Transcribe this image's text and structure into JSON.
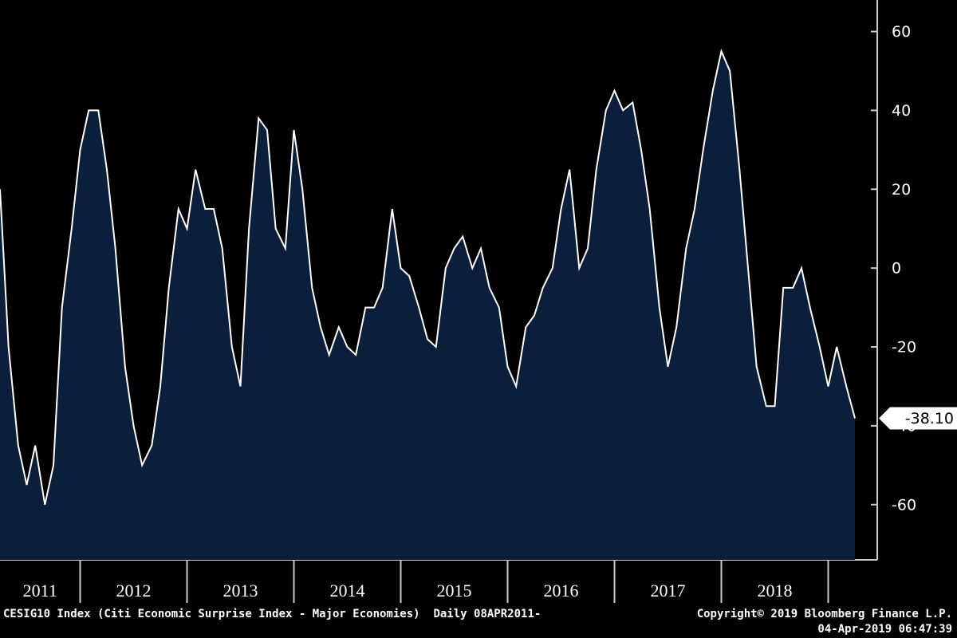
{
  "chart_data": {
    "type": "area",
    "series": [
      {
        "name": "CESIG10 Index",
        "color": "#ffffff",
        "fill": "#0b1f3c",
        "values": [
          20,
          -20,
          -45,
          -55,
          -45,
          -60,
          -50,
          -10,
          10,
          30,
          40,
          40,
          25,
          5,
          -25,
          -40,
          -50,
          -45,
          -30,
          -5,
          15,
          10,
          25,
          15,
          15,
          5,
          -20,
          -30,
          10,
          38,
          35,
          10,
          5,
          35,
          20,
          -5,
          -15,
          -22,
          -15,
          -20,
          -22,
          -10,
          -10,
          -5,
          15,
          0,
          -2,
          -10,
          -18,
          -20,
          0,
          5,
          8,
          0,
          5,
          -5,
          -10,
          -25,
          -30,
          -15,
          -12,
          -5,
          0,
          15,
          25,
          0,
          5,
          25,
          40,
          45,
          40,
          42,
          30,
          15,
          -10,
          -25,
          -15,
          5,
          15,
          30,
          45,
          55,
          50,
          25,
          0,
          -25,
          -35,
          -35,
          -5,
          -5,
          0,
          -10,
          -20,
          -30,
          -20,
          -30,
          -38.1
        ],
        "value_labels": [
          null,
          null,
          null,
          null,
          null,
          null,
          null,
          null,
          null,
          null,
          null,
          null,
          null,
          null,
          null,
          null,
          null,
          null,
          null,
          null,
          null,
          null,
          null,
          null,
          null,
          null,
          null,
          null,
          null,
          null,
          null,
          null,
          null,
          null,
          null,
          null,
          null,
          null,
          null,
          null,
          null,
          null,
          null,
          null,
          null,
          null,
          null,
          null,
          null,
          null,
          null,
          null,
          null,
          null,
          null,
          null,
          null,
          null,
          null,
          null,
          null,
          null,
          null,
          null,
          null,
          null,
          null,
          null,
          null,
          null,
          null,
          null,
          null,
          null,
          null,
          null,
          null,
          null,
          null,
          null,
          null,
          null,
          null,
          null,
          null,
          null,
          null,
          null,
          null,
          null,
          null,
          null,
          null,
          null,
          null,
          null,
          "-38.10"
        ]
      }
    ],
    "x": [
      2011.25,
      2011.33,
      2011.42,
      2011.5,
      2011.58,
      2011.67,
      2011.75,
      2011.83,
      2011.92,
      2012.0,
      2012.08,
      2012.17,
      2012.25,
      2012.33,
      2012.42,
      2012.5,
      2012.58,
      2012.67,
      2012.75,
      2012.83,
      2012.92,
      2013.0,
      2013.08,
      2013.17,
      2013.25,
      2013.33,
      2013.42,
      2013.5,
      2013.58,
      2013.67,
      2013.75,
      2013.83,
      2013.92,
      2014.0,
      2014.08,
      2014.17,
      2014.25,
      2014.33,
      2014.42,
      2014.5,
      2014.58,
      2014.67,
      2014.75,
      2014.83,
      2014.92,
      2015.0,
      2015.08,
      2015.17,
      2015.25,
      2015.33,
      2015.42,
      2015.5,
      2015.58,
      2015.67,
      2015.75,
      2015.83,
      2015.92,
      2016.0,
      2016.08,
      2016.17,
      2016.25,
      2016.33,
      2016.42,
      2016.5,
      2016.58,
      2016.67,
      2016.75,
      2016.83,
      2016.92,
      2017.0,
      2017.08,
      2017.17,
      2017.25,
      2017.33,
      2017.42,
      2017.5,
      2017.58,
      2017.67,
      2017.75,
      2017.83,
      2017.92,
      2018.0,
      2018.08,
      2018.17,
      2018.25,
      2018.33,
      2018.42,
      2018.5,
      2018.58,
      2018.67,
      2018.75,
      2018.83,
      2018.92,
      2019.0,
      2019.08,
      2019.17,
      2019.25
    ],
    "categories": [
      "2011",
      "2012",
      "2013",
      "2014",
      "2015",
      "2016",
      "2017",
      "2018"
    ],
    "xlim": [
      2011.25,
      2019.25
    ],
    "xticks": [
      2012,
      2013,
      2014,
      2015,
      2016,
      2017,
      2018,
      2019
    ],
    "ylim": [
      -74,
      68
    ],
    "yticks": [
      -60,
      -40,
      -20,
      0,
      20,
      40,
      60
    ],
    "footer_left": "CESIG10 Index (Citi Economic Surprise Index - Major Economies)  Daily 08APR2011-",
    "footer_right": [
      "Copyright© 2019 Bloomberg Finance L.P.",
      "04-Apr-2019 06:47:39"
    ]
  }
}
